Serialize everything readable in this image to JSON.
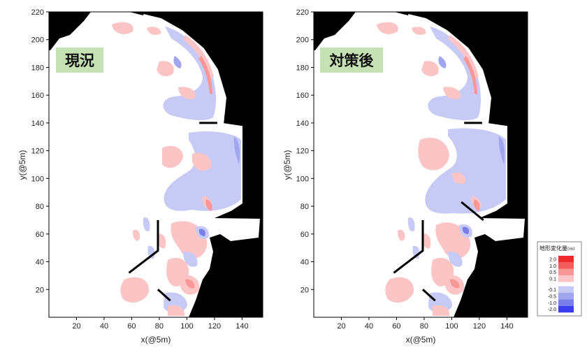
{
  "chart_data": [
    {
      "type": "heatmap",
      "title": "現況",
      "xlabel": "x(@5m)",
      "ylabel": "y(@5m)",
      "xlim": [
        0,
        155
      ],
      "ylim": [
        0,
        220
      ],
      "xticks": [
        20,
        40,
        60,
        80,
        100,
        120,
        140
      ],
      "yticks": [
        20,
        40,
        60,
        80,
        100,
        120,
        140,
        160,
        180,
        200,
        220
      ],
      "structures": [
        {
          "name": "groin-west",
          "points": [
            [
              79,
              70
            ],
            [
              79,
              48
            ],
            [
              58,
              32
            ]
          ]
        },
        {
          "name": "jetty-north",
          "points": [
            [
              109,
              140
            ],
            [
              122,
              140
            ]
          ]
        },
        {
          "name": "jetty-south",
          "points": [
            [
              79,
              20
            ],
            [
              88,
              12
            ]
          ]
        }
      ]
    },
    {
      "type": "heatmap",
      "title": "対策後",
      "xlabel": "x(@5m)",
      "ylabel": "y(@5m)",
      "xlim": [
        0,
        155
      ],
      "ylim": [
        0,
        220
      ],
      "xticks": [
        20,
        40,
        60,
        80,
        100,
        120,
        140
      ],
      "yticks": [
        20,
        40,
        60,
        80,
        100,
        120,
        140,
        160,
        180,
        200,
        220
      ],
      "structures": [
        {
          "name": "groin-west",
          "points": [
            [
              79,
              70
            ],
            [
              79,
              48
            ],
            [
              58,
              32
            ]
          ]
        },
        {
          "name": "jetty-north",
          "points": [
            [
              109,
              140
            ],
            [
              122,
              140
            ]
          ]
        },
        {
          "name": "breakwater-new",
          "points": [
            [
              107,
              83
            ],
            [
              123,
              70
            ]
          ]
        },
        {
          "name": "jetty-south",
          "points": [
            [
              79,
              20
            ],
            [
              88,
              12
            ]
          ]
        }
      ]
    }
  ],
  "legend": {
    "title": "地形変化量",
    "unit": "(m)",
    "positive_labels": [
      "2.0",
      "1.0",
      "0.5",
      "0.1"
    ],
    "negative_labels": [
      "-0.1",
      "-0.5",
      "-1.0",
      "-2.0"
    ],
    "positive_colors": [
      "#ee2b2b",
      "#f55c5c",
      "#f99696",
      "#fcc5c5"
    ],
    "negative_colors": [
      "#c8caf6",
      "#a2a6ef",
      "#7a7ee8",
      "#3a3ef0"
    ]
  },
  "colors": {
    "land": "#000000",
    "badge": "#c6e2b4"
  }
}
